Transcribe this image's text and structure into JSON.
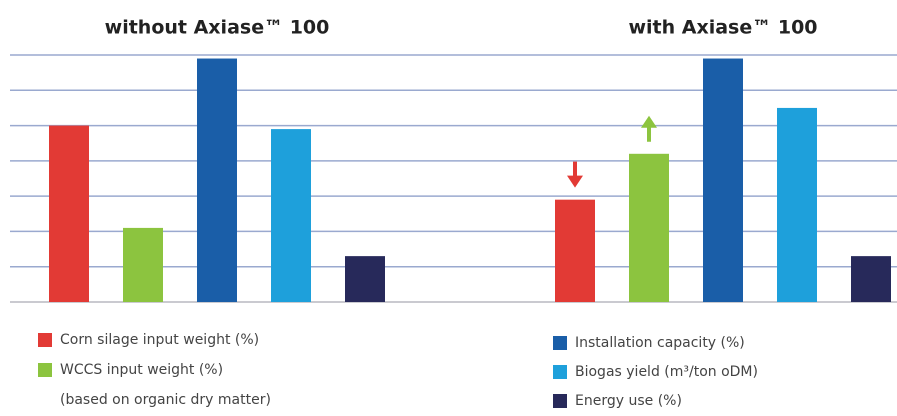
{
  "chart_data": {
    "type": "bar",
    "categories": [
      "without Axiase™ 100",
      "with Axiase™ 100"
    ],
    "series": [
      {
        "name": "Corn silage input weight (%)",
        "color": "#e23a35",
        "values": [
          5.0,
          2.9
        ]
      },
      {
        "name": "WCCS input weight (%)",
        "color": "#8cc43f",
        "values": [
          2.1,
          4.2
        ]
      },
      {
        "name": "Installation capacity (%)",
        "color": "#1a5ea8",
        "values": [
          6.9,
          6.9
        ]
      },
      {
        "name": "Biogas yield (m³/ton oDM)",
        "color": "#1ea0db",
        "values": [
          4.9,
          5.5
        ]
      },
      {
        "name": "Energy use (%)",
        "color": "#27295a",
        "values": [
          1.3,
          1.3
        ]
      }
    ],
    "legend_note": "(based on organic dry matter)",
    "ylim": [
      0,
      7
    ],
    "yticks": [
      0,
      1,
      2,
      3,
      4,
      5,
      6,
      7
    ],
    "grid": true
  }
}
